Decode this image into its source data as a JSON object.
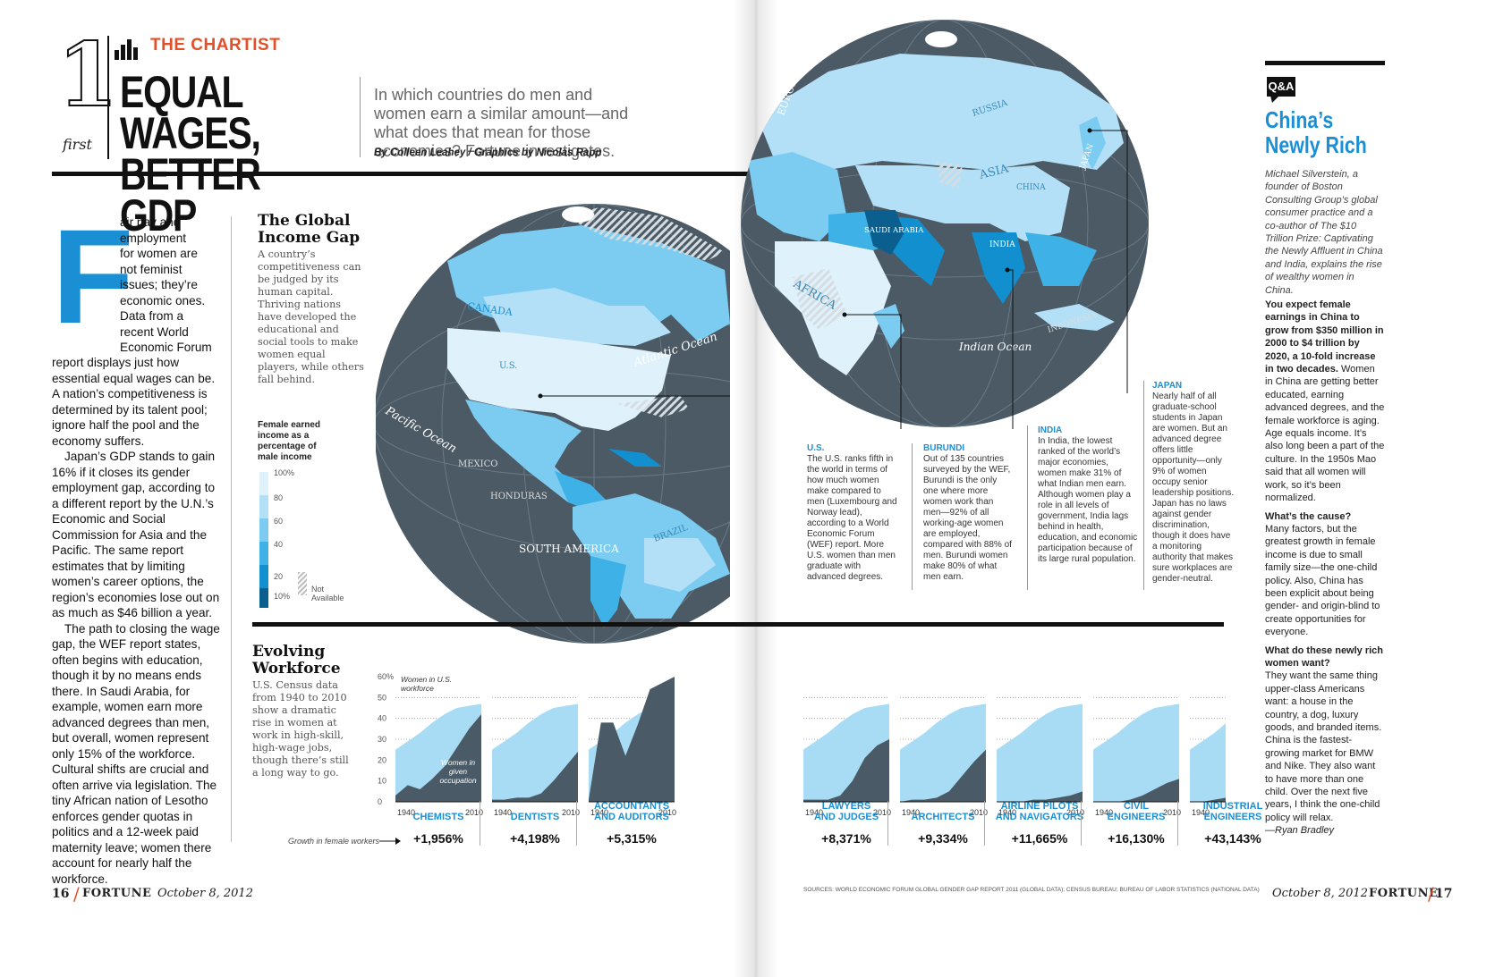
{
  "header": {
    "number": "1",
    "first_label": "first",
    "section": "THE CHARTIST",
    "headline_line1": "EQUAL WAGES,",
    "headline_line2": "BETTER GDP",
    "dek": "In which countries do men and women earn a similar amount—and what does that mean for those economies? Fortune investigates.",
    "byline": "By Colleen Leahey / Graphics by Nicolas Rapp"
  },
  "article": {
    "dropcap": "F",
    "lines_beside_cap": [
      "air pay and",
      "employment",
      "for women are",
      "not feminist",
      "issues; they’re",
      "economic ones.",
      "Data from a",
      "recent World",
      "Economic Forum"
    ],
    "para1_rest": "report displays just how essential equal wages can be. A nation’s competitiveness is determined by its talent pool; ignore half the pool and the economy suffers.",
    "para2": "Japan’s GDP stands to gain 16% if it closes its gender employment gap, according to a different report by the U.N.’s Economic and Social Commission for Asia and the Pacific. The same report estimates that by limiting women’s career options, the region’s economies lose out on as much as $46 billion a year.",
    "para3": "The path to closing the wage gap, the WEF report states, often begins with education, though it by no means ends there. In Saudi Arabia, for example, women earn more advanced degrees than men, but overall, women represent only 15% of the workforce. Cultural shifts are crucial and often arrive via legislation. The tiny African nation of Lesotho enforces gender quotas in politics and a 12-week paid maternity leave; women there account for nearly half the workforce."
  },
  "income_gap": {
    "title": "The Global Income Gap",
    "text": "A country’s competitiveness can be judged by its human capital. Thriving nations have developed the educational and social tools to make women equal players, while others fall behind.",
    "legend_title": "Female earned income as a percentage of male income",
    "legend_ticks": [
      "100%",
      "80",
      "60",
      "40",
      "20",
      "10%"
    ],
    "not_available": "Not Available",
    "legend_colors": [
      "#dff1fb",
      "#b3e0f7",
      "#7ccbf0",
      "#3eb1e6",
      "#118fcf",
      "#0b5f8f"
    ]
  },
  "map_labels": {
    "canada": "CANADA",
    "us": "U.S.",
    "atlantic": "Atlantic Ocean",
    "pacific": "Pacific Ocean",
    "mexico": "MEXICO",
    "honduras": "HONDURAS",
    "south_america": "SOUTH AMERICA",
    "brazil": "BRAZIL",
    "europe": "EUROPE",
    "russia": "RUSSIA",
    "asia": "ASIA",
    "china": "CHINA",
    "japan": "JAPAN",
    "saudi": "SAUDI ARABIA",
    "india": "INDIA",
    "africa": "AFRICA",
    "indian_ocean": "Indian Ocean",
    "indonesia": "INDONESIA"
  },
  "callouts": [
    {
      "title": "U.S.",
      "text": "The U.S. ranks fifth in the world in terms of how much women make compared to men (Luxembourg and Norway lead), according to a World Economic Forum (WEF) report. More U.S. women than men graduate with advanced degrees."
    },
    {
      "title": "BURUNDI",
      "text": "Out of 135 countries surveyed by the WEF, Burundi is the only one where more women work than men—92% of all working-age women are employed, compared with 88% of men. Burundi women make 80% of what men earn."
    },
    {
      "title": "INDIA",
      "text": "In India, the lowest ranked of the world’s major economies, women make 31% of what Indian men earn. Although women play a role in all levels of government, India lags behind in health, education, and economic participation because of its large rural population."
    },
    {
      "title": "JAPAN",
      "text": "Nearly half of all graduate-school students in Japan are women. But an advanced degree offers little opportunity—only 9% of women occupy senior leadership positions. Japan has no laws against gender discrimination, though it does have a monitoring authority that makes sure workplaces are gender-neutral."
    }
  ],
  "workforce": {
    "title": "Evolving Workforce",
    "text": "U.S. Census data from 1940 to 2010 show a dramatic rise in women at work in high-skill, high-wage jobs, though there’s still a long way to go.",
    "y_ticks": [
      "60%",
      "50",
      "40",
      "30",
      "20",
      "10",
      "0"
    ],
    "x_start": "1940",
    "x_end": "2010",
    "ann_workforce": "Women in U.S. workforce",
    "ann_occupation": "Women in given occupation",
    "growth_label": "Growth in female workers",
    "light_color": "#a8dcf5",
    "dark_color": "#4a5a66"
  },
  "chart_data": {
    "type": "area",
    "x": [
      1940,
      1950,
      1960,
      1970,
      1980,
      1990,
      2000,
      2010
    ],
    "ylim": [
      0,
      60
    ],
    "workforce_share": [
      25,
      29,
      33,
      38,
      42,
      45,
      46,
      47
    ],
    "series": [
      {
        "name": "CHEMISTS",
        "growth": "+1,956%",
        "values": [
          3,
          8,
          6,
          11,
          17,
          26,
          35,
          42
        ]
      },
      {
        "name": "DENTISTS",
        "growth": "+4,198%",
        "values": [
          1,
          1,
          2,
          2,
          4,
          10,
          17,
          24
        ]
      },
      {
        "name": "ACCOUNTANTS AND AUDITORS",
        "growth": "+5,315%",
        "values": [
          1,
          38,
          38,
          22,
          37,
          54,
          57,
          60
        ]
      },
      {
        "name": "LAWYERS AND JUDGES",
        "growth": "+8,371%",
        "values": [
          1,
          1,
          1,
          3,
          10,
          21,
          27,
          30
        ]
      },
      {
        "name": "ARCHITECTS",
        "growth": "+9,334%",
        "values": [
          0,
          1,
          1,
          2,
          5,
          12,
          19,
          25
        ]
      },
      {
        "name": "AIRLINE PILOTS AND NAVIGATORS",
        "growth": "+11,665%",
        "values": [
          0,
          0,
          0,
          1,
          1,
          2,
          3,
          5
        ]
      },
      {
        "name": "CIVIL ENGINEERS",
        "growth": "+16,130%",
        "values": [
          0,
          0,
          0,
          1,
          3,
          6,
          9,
          11
        ]
      },
      {
        "name": "INDUSTRIAL ENGINEERS",
        "growth": "+43,143%",
        "values": [
          0,
          0,
          1,
          2,
          6,
          11,
          15,
          18
        ]
      }
    ]
  },
  "sidebar": {
    "tag": "Q&A",
    "title_line1": "China’s",
    "title_line2": "Newly Rich",
    "intro": "Michael Silverstein, a founder of Boston Consulting Group’s global consumer practice and a co-author of The $10 Trillion Prize: Captivating the Newly Affluent in China and India, explains the rise of wealthy women in China.",
    "q1": "You expect female earnings in China to grow from $350 million in 2000 to $4 trillion by 2020, a 10-fold increase in two decades.",
    "a1": "Women in China are getting better educated, earning advanced degrees, and the female workforce is aging. Age equals income. It’s also long been a part of the culture. In the 1950s Mao said that all women will work, so it’s been normalized.",
    "q2": "What’s the cause?",
    "a2": "Many factors, but the greatest growth in female income is due to small family size—the one-child policy. Also, China has been explicit about being gender- and origin-blind to create opportunities for everyone.",
    "q3": "What do these newly rich women want?",
    "a3": "They want the same thing upper-class Americans want: a house in the country, a dog, luxury goods, and branded items. China is the fastest-growing market for BMW and Nike. They also want to have more than one child. Over the next five years, I think the one-child policy will relax.",
    "sign": "—Ryan Bradley"
  },
  "footer": {
    "left_page": "16",
    "magazine": "FORTUNE",
    "date": "October 8, 2012",
    "right_page": "17",
    "sources": "SOURCES: WORLD ECONOMIC FORUM GLOBAL GENDER GAP REPORT 2011 (GLOBAL DATA); CENSUS BUREAU; BUREAU OF LABOR STATISTICS (NATIONAL DATA)"
  }
}
